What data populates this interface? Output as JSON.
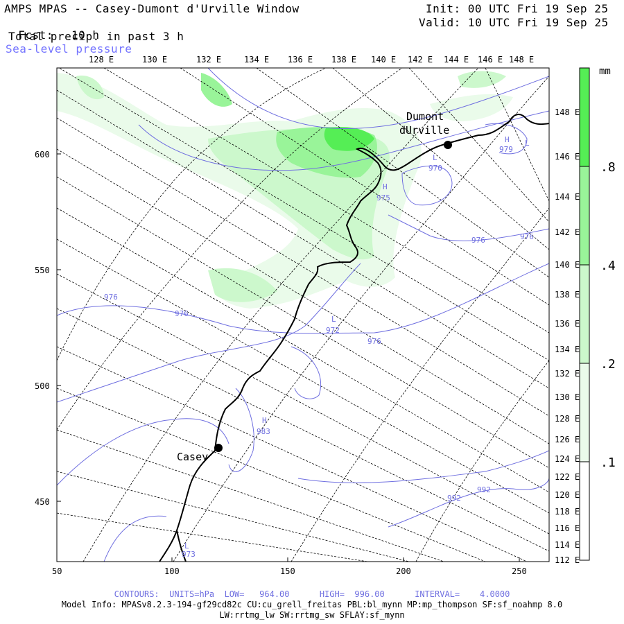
{
  "header": {
    "title": "AMPS MPAS -- Casey-Dumont d'Urville Window",
    "fcst_label": "Fcst:",
    "fcst_value": "10 h",
    "field": "Total precip. in past 3 h",
    "overlay": "Sea-level pressure",
    "init": "Init: 00 UTC Fri 19 Sep 25",
    "valid": "Valid: 10 UTC Fri 19 Sep 25"
  },
  "top_lon_labels": [
    "128 E",
    "130 E",
    "132 E",
    "134 E",
    "136 E",
    "138 E",
    "140 E",
    "142 E",
    "144 E",
    "146 E",
    "148 E"
  ],
  "right_lon_labels": [
    "148 E",
    "146 E",
    "144 E",
    "142 E",
    "140 E",
    "138 E",
    "136 E",
    "134 E",
    "132 E",
    "130 E",
    "128 E",
    "126 E",
    "124 E",
    "122 E",
    "120 E",
    "118 E",
    "116 E",
    "114 E",
    "112 E"
  ],
  "x_axis": [
    "50",
    "100",
    "150",
    "200",
    "250"
  ],
  "y_axis": [
    "600",
    "550",
    "500",
    "450"
  ],
  "colorbar": {
    "unit": "mm",
    "labels": [
      ".8",
      ".4",
      ".2",
      ".1"
    ],
    "colors": [
      "#55ee55",
      "#99f499",
      "#ccf8cc",
      "#eafbea",
      "#ffffff"
    ]
  },
  "stations": [
    {
      "name": "Dumont",
      "name2": "dUrville"
    },
    {
      "name": "Casey"
    }
  ],
  "pressure_labels": [
    "970",
    "975",
    "976",
    "976",
    "976",
    "976",
    "972",
    "976",
    "983",
    "992",
    "992",
    "979",
    "973"
  ],
  "pressure_centers": [
    "L",
    "H",
    "L",
    "H",
    "H",
    "L",
    "L"
  ],
  "footer": {
    "contours": "CONTOURS:  UNITS=hPa  LOW=   964.00      HIGH=  996.00      INTERVAL=    4.0000",
    "model1": "Model Info: MPASv8.2.3-194-gf29cd82c CU:cu_grell_freitas PBL:bl_mynn MP:mp_thompson SF:sf_noahmp 8.0",
    "model2": "LW:rrtmg_lw SW:rrtmg_sw SFLAY:sf_mynn"
  }
}
